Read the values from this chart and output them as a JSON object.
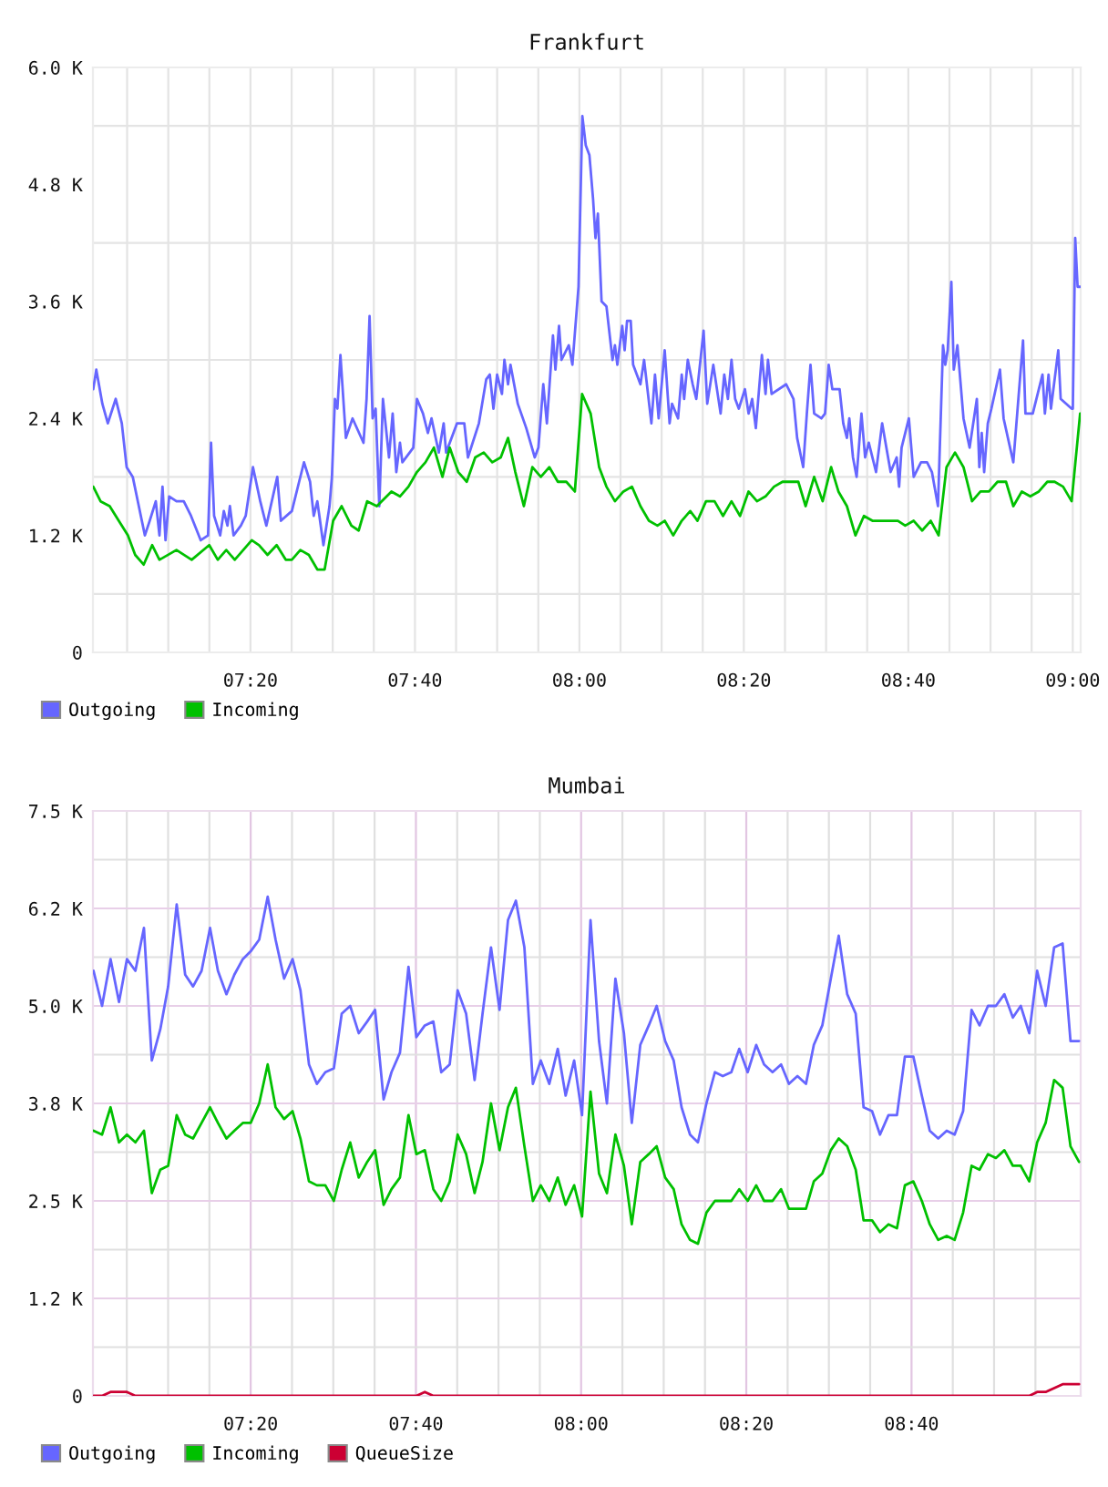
{
  "chart_data": [
    {
      "type": "line",
      "title": "Frankfurt",
      "xlim": [
        7.014,
        9.016
      ],
      "ylim": [
        0,
        6000
      ],
      "grid": true,
      "legend": "bottom left",
      "xticks": [
        {
          "value": 7.0833,
          "label": null
        },
        {
          "value": 7.1667,
          "label": null
        },
        {
          "value": 7.25,
          "label": null
        },
        {
          "value": 7.3333,
          "label": "07:20"
        },
        {
          "value": 7.4167,
          "label": null
        },
        {
          "value": 7.5,
          "label": null
        },
        {
          "value": 7.5833,
          "label": null
        },
        {
          "value": 7.6667,
          "label": "07:40"
        },
        {
          "value": 7.75,
          "label": null
        },
        {
          "value": 7.8333,
          "label": null
        },
        {
          "value": 7.9167,
          "label": null
        },
        {
          "value": 8,
          "label": "08:00"
        },
        {
          "value": 8.0833,
          "label": null
        },
        {
          "value": 8.1667,
          "label": null
        },
        {
          "value": 8.25,
          "label": null
        },
        {
          "value": 8.3333,
          "label": "08:20"
        },
        {
          "value": 8.4167,
          "label": null
        },
        {
          "value": 8.5,
          "label": null
        },
        {
          "value": 8.5833,
          "label": null
        },
        {
          "value": 8.6667,
          "label": "08:40"
        },
        {
          "value": 8.75,
          "label": null
        },
        {
          "value": 8.8333,
          "label": null
        },
        {
          "value": 8.9167,
          "label": null
        },
        {
          "value": 9,
          "label": "09:00"
        }
      ],
      "yticks": [
        0,
        {
          "value": 600,
          "label": null
        },
        {
          "value": 1200,
          "label": "1.2 K"
        },
        {
          "value": 1800,
          "label": null
        },
        {
          "value": 2400,
          "label": "2.4 K"
        },
        {
          "value": 3000,
          "label": null
        },
        {
          "value": 3600,
          "label": "3.6 K"
        },
        {
          "value": 4200,
          "label": null
        },
        {
          "value": 4800,
          "label": "4.8 K"
        },
        {
          "value": 5400,
          "label": null
        },
        {
          "value": 6000,
          "label": "6.0 K"
        }
      ],
      "series": [
        {
          "name": "Outgoing",
          "color": "#6666ff",
          "x": [
            7.0146,
            7.0208,
            7.0331,
            7.0442,
            7.0602,
            7.0725,
            7.0823,
            7.0947,
            7.1131,
            7.1193,
            7.1291,
            7.1414,
            7.1488,
            7.155,
            7.1611,
            7.1685,
            7.1833,
            7.1981,
            7.2128,
            7.2325,
            7.2473,
            7.2534,
            7.2596,
            7.2719,
            7.2793,
            7.2867,
            7.2916,
            7.299,
            7.3138,
            7.3236,
            7.3384,
            7.3531,
            7.3655,
            7.3876,
            7.395,
            7.4172,
            7.4319,
            7.4418,
            7.4541,
            7.4615,
            7.4688,
            7.4812,
            7.4935,
            7.4984,
            7.5045,
            7.5095,
            7.5156,
            7.5267,
            7.5402,
            7.5624,
            7.5686,
            7.5747,
            7.5809,
            7.587,
            7.5944,
            7.6018,
            7.6141,
            7.6215,
            7.6289,
            7.6363,
            7.6412,
            7.6633,
            7.6707,
            7.683,
            7.6929,
            7.7003,
            7.715,
            7.7249,
            7.7298,
            7.752,
            7.7667,
            7.7741,
            7.7963,
            7.8111,
            7.8184,
            7.8258,
            7.8332,
            7.843,
            7.848,
            7.8554,
            7.8603,
            7.8751,
            7.8923,
            7.9095,
            7.9169,
            7.9268,
            7.9341,
            7.9464,
            7.9514,
            7.9587,
            7.9637,
            7.9785,
            7.9858,
            7.9982,
            8.006,
            8.0129,
            8.0203,
            8.0277,
            8.0326,
            8.0375,
            8.0449,
            8.0548,
            8.0671,
            8.072,
            8.0769,
            8.0868,
            8.0917,
            8.0966,
            8.104,
            8.1089,
            8.1237,
            8.1311,
            8.1459,
            8.1532,
            8.1606,
            8.1729,
            8.1828,
            8.1877,
            8.2,
            8.2074,
            8.2123,
            8.2197,
            8.2296,
            8.2369,
            8.2517,
            8.2591,
            8.2714,
            8.2862,
            8.2936,
            8.301,
            8.3083,
            8.3157,
            8.3231,
            8.3355,
            8.3429,
            8.3502,
            8.3576,
            8.3699,
            8.3773,
            8.3822,
            8.3896,
            8.4191,
            8.4339,
            8.4413,
            8.4536,
            8.461,
            8.4684,
            8.4758,
            8.4905,
            8.4979,
            8.5053,
            8.5127,
            8.5274,
            8.5348,
            8.5422,
            8.5471,
            8.5545,
            8.5619,
            8.5717,
            8.5791,
            8.5865,
            8.6013,
            8.6136,
            8.6308,
            8.6431,
            8.648,
            8.653,
            8.6678,
            8.6776,
            8.6924,
            8.7047,
            8.7145,
            8.7268,
            8.737,
            8.7416,
            8.7465,
            8.7539,
            8.7588,
            8.7662,
            8.7785,
            8.7909,
            8.8056,
            8.8106,
            8.8155,
            8.8204,
            8.8278,
            8.8351,
            8.8524,
            8.8598,
            8.8795,
            8.8992,
            8.9041,
            8.9189,
            8.9386,
            8.9435,
            8.9509,
            8.9558,
            8.9706,
            8.9755,
            8.9977,
            9.0001,
            9.005,
            9.0098,
            9.0147
          ],
          "values": [
            2700,
            2900,
            2550,
            2350,
            2600,
            2350,
            1900,
            1800,
            1350,
            1200,
            1350,
            1550,
            1200,
            1700,
            1150,
            1600,
            1550,
            1550,
            1400,
            1150,
            1200,
            2150,
            1400,
            1200,
            1450,
            1300,
            1500,
            1200,
            1300,
            1400,
            1900,
            1550,
            1300,
            1800,
            1350,
            1450,
            1750,
            1950,
            1750,
            1400,
            1550,
            1100,
            1500,
            1800,
            2600,
            2500,
            3050,
            2200,
            2400,
            2150,
            2600,
            3450,
            2400,
            2500,
            1500,
            2600,
            2000,
            2450,
            1850,
            2150,
            1950,
            2100,
            2600,
            2450,
            2250,
            2400,
            2050,
            2350,
            2050,
            2350,
            2350,
            2000,
            2350,
            2800,
            2850,
            2500,
            2850,
            2650,
            3000,
            2750,
            2950,
            2550,
            2300,
            2000,
            2100,
            2750,
            2350,
            3250,
            2900,
            3350,
            3000,
            3150,
            2950,
            3750,
            5500,
            5200,
            5100,
            4650,
            4250,
            4500,
            3600,
            3550,
            3000,
            3150,
            2950,
            3350,
            3100,
            3400,
            3400,
            2950,
            2750,
            3000,
            2350,
            2850,
            2400,
            3100,
            2350,
            2550,
            2400,
            2850,
            2600,
            3000,
            2750,
            2600,
            3300,
            2550,
            2950,
            2450,
            2850,
            2600,
            3000,
            2600,
            2500,
            2700,
            2450,
            2600,
            2300,
            3050,
            2650,
            3000,
            2650,
            2750,
            2600,
            2200,
            1900,
            2450,
            2950,
            2450,
            2400,
            2450,
            2950,
            2700,
            2700,
            2350,
            2200,
            2400,
            2000,
            1800,
            2450,
            2000,
            2150,
            1850,
            2350,
            1850,
            2000,
            1700,
            2100,
            2400,
            1800,
            1950,
            1950,
            1850,
            1500,
            3150,
            2950,
            3100,
            3800,
            2900,
            3150,
            2400,
            2100,
            2600,
            1900,
            2250,
            1850,
            2350,
            2500,
            2900,
            2400,
            1950,
            3200,
            2450,
            2450,
            2850,
            2450,
            2850,
            2500,
            3100,
            2600,
            2500,
            2500,
            4250,
            3750,
            3750
          ]
        },
        {
          "name": "Incoming",
          "color": "#00c000",
          "x": [
            7.0146,
            7.0294,
            7.0479,
            7.0663,
            7.0848,
            7.0996,
            7.1168,
            7.1341,
            7.1488,
            7.1833,
            7.2141,
            7.2497,
            7.267,
            7.2842,
            7.3014,
            7.3187,
            7.3359,
            7.3507,
            7.3679,
            7.3864,
            7.4048,
            7.4171,
            7.4344,
            7.4516,
            7.4688,
            7.4836,
            7.5009,
            7.5181,
            7.5378,
            7.5526,
            7.5698,
            7.5895,
            7.619,
            7.6363,
            7.6535,
            7.6707,
            7.688,
            7.7052,
            7.7224,
            7.7372,
            7.7544,
            7.7717,
            7.7889,
            7.8061,
            7.8234,
            7.8406,
            7.8554,
            7.8701,
            7.8874,
            7.9046,
            7.9218,
            7.9391,
            7.9563,
            7.9735,
            7.9908,
            8.0055,
            8.0228,
            8.04,
            8.0548,
            8.072,
            8.0892,
            8.1065,
            8.1237,
            8.1409,
            8.1582,
            8.1729,
            8.1902,
            8.2074,
            8.2246,
            8.2394,
            8.2566,
            8.2739,
            8.2911,
            8.3083,
            8.3256,
            8.3428,
            8.36,
            8.3773,
            8.3945,
            8.4117,
            8.429,
            8.4437,
            8.4585,
            8.4758,
            8.493,
            8.5102,
            8.525,
            8.5422,
            8.5595,
            8.5767,
            8.5939,
            8.6112,
            8.6456,
            8.6604,
            8.6776,
            8.6948,
            8.7121,
            8.7281,
            8.7441,
            8.7613,
            8.7785,
            8.7958,
            8.813,
            8.8302,
            8.8475,
            8.8647,
            8.8795,
            8.8967,
            8.9139,
            8.9312,
            8.9484,
            8.9632,
            8.9804,
            8.9977,
            9.0149
          ],
          "values": [
            1700,
            1550,
            1500,
            1350,
            1200,
            1000,
            900,
            1100,
            950,
            1050,
            950,
            1100,
            950,
            1050,
            950,
            1050,
            1150,
            1100,
            1000,
            1100,
            950,
            950,
            1050,
            1000,
            850,
            850,
            1350,
            1500,
            1300,
            1250,
            1550,
            1500,
            1650,
            1600,
            1700,
            1850,
            1950,
            2100,
            1800,
            2100,
            1850,
            1750,
            2000,
            2050,
            1950,
            2000,
            2200,
            1850,
            1500,
            1900,
            1800,
            1900,
            1750,
            1750,
            1650,
            2650,
            2450,
            1900,
            1700,
            1550,
            1650,
            1700,
            1500,
            1350,
            1300,
            1350,
            1200,
            1350,
            1450,
            1350,
            1550,
            1550,
            1400,
            1550,
            1400,
            1650,
            1550,
            1600,
            1700,
            1750,
            1750,
            1750,
            1500,
            1800,
            1550,
            1900,
            1650,
            1500,
            1200,
            1400,
            1350,
            1350,
            1350,
            1300,
            1350,
            1250,
            1350,
            1200,
            1900,
            2050,
            1900,
            1550,
            1650,
            1650,
            1750,
            1750,
            1500,
            1650,
            1600,
            1650,
            1750,
            1750,
            1700,
            1550,
            2450
          ]
        }
      ]
    },
    {
      "type": "line",
      "title": "Mumbai",
      "xlim": [
        7.015,
        9.008
      ],
      "ylim": [
        0,
        7500
      ],
      "grid": true,
      "legend": "bottom left",
      "xticks": [
        {
          "value": 7.0833,
          "label": null
        },
        {
          "value": 7.1667,
          "label": null
        },
        {
          "value": 7.25,
          "label": null
        },
        {
          "value": 7.3333,
          "label": "07:20"
        },
        {
          "value": 7.4167,
          "label": null
        },
        {
          "value": 7.5,
          "label": null
        },
        {
          "value": 7.5833,
          "label": null
        },
        {
          "value": 7.6667,
          "label": "07:40"
        },
        {
          "value": 7.75,
          "label": null
        },
        {
          "value": 7.8333,
          "label": null
        },
        {
          "value": 7.9167,
          "label": null
        },
        {
          "value": 8,
          "label": "08:00"
        },
        {
          "value": 8.0833,
          "label": null
        },
        {
          "value": 8.1667,
          "label": null
        },
        {
          "value": 8.25,
          "label": null
        },
        {
          "value": 8.3333,
          "label": "08:20"
        },
        {
          "value": 8.4167,
          "label": null
        },
        {
          "value": 8.5,
          "label": null
        },
        {
          "value": 8.5833,
          "label": null
        },
        {
          "value": 8.6667,
          "label": "08:40"
        },
        {
          "value": 8.75,
          "label": null
        },
        {
          "value": 8.8333,
          "label": null
        },
        {
          "value": 8.9167,
          "label": null
        }
      ],
      "yticks": [
        0,
        {
          "value": 625,
          "label": null
        },
        {
          "value": 1250,
          "label": "1.2 K"
        },
        {
          "value": 1875,
          "label": null
        },
        {
          "value": 2500,
          "label": "2.5 K"
        },
        {
          "value": 3125,
          "label": null
        },
        {
          "value": 3750,
          "label": "3.8 K"
        },
        {
          "value": 4375,
          "label": null
        },
        {
          "value": 5000,
          "label": "5.0 K"
        },
        {
          "value": 5625,
          "label": null
        },
        {
          "value": 6250,
          "label": "6.2 K"
        },
        {
          "value": 6875,
          "label": null
        },
        {
          "value": 7500,
          "label": "7.5 K"
        }
      ],
      "x": [
        7.0162,
        7.0334,
        7.0505,
        7.0676,
        7.0836,
        7.1007,
        7.1179,
        7.1338,
        7.1509,
        7.1668,
        7.184,
        7.2011,
        7.217,
        7.2342,
        7.2513,
        7.2672,
        7.2844,
        7.3003,
        7.3174,
        7.3333,
        7.3505,
        7.3676,
        7.3835,
        7.4007,
        7.4178,
        7.4337,
        7.4509,
        7.4668,
        7.4839,
        7.5011,
        7.517,
        7.5341,
        7.5513,
        7.5684,
        7.5843,
        7.6015,
        7.6174,
        7.6345,
        7.6517,
        7.6676,
        7.6847,
        7.7019,
        7.7178,
        7.7349,
        7.7509,
        7.768,
        7.7851,
        7.8011,
        7.8182,
        7.8354,
        7.8525,
        7.8684,
        7.8856,
        7.9027,
        7.9186,
        7.9358,
        7.9529,
        7.9688,
        7.986,
        8.0019,
        8.019,
        8.0362,
        8.0521,
        8.0692,
        8.0864,
        8.1023,
        8.1194,
        8.1366,
        8.1525,
        8.1696,
        8.1868,
        8.2027,
        8.2198,
        8.2357,
        8.2529,
        8.27,
        8.2859,
        8.3031,
        8.319,
        8.3361,
        8.3533,
        8.3692,
        8.3863,
        8.4035,
        8.4194,
        8.4365,
        8.4537,
        8.4696,
        8.4867,
        8.5039,
        8.5198,
        8.5369,
        8.5541,
        8.57,
        8.5871,
        8.6031,
        8.6202,
        8.6373,
        8.6533,
        8.6704,
        8.6875,
        8.7035,
        8.7206,
        8.7377,
        8.7537,
        8.7708,
        8.7879,
        8.8039,
        8.821,
        8.8369,
        8.8541,
        8.8712,
        8.8871,
        8.9043,
        8.9202,
        8.9373,
        8.9545,
        8.9716,
        8.9875,
        9.0047
      ],
      "series": [
        {
          "name": "Outgoing",
          "color": "#6666ff",
          "values": [
            5450,
            5000,
            5600,
            5050,
            5600,
            5450,
            6000,
            4300,
            4700,
            5250,
            6300,
            5400,
            5250,
            5450,
            6000,
            5450,
            5150,
            5400,
            5600,
            5700,
            5850,
            6400,
            5850,
            5350,
            5600,
            5200,
            4250,
            4000,
            4150,
            4200,
            4900,
            5000,
            4650,
            4800,
            4950,
            3800,
            4150,
            4400,
            5500,
            4600,
            4750,
            4800,
            4150,
            4250,
            5200,
            4900,
            4050,
            4900,
            5750,
            4950,
            6100,
            6350,
            5750,
            4000,
            4300,
            4000,
            4450,
            3850,
            4300,
            3600,
            6100,
            4550,
            3750,
            5350,
            4650,
            3500,
            4500,
            4750,
            5000,
            4550,
            4300,
            3700,
            3350,
            3250,
            3750,
            4150,
            4100,
            4150,
            4450,
            4150,
            4500,
            4250,
            4150,
            4250,
            4000,
            4100,
            4000,
            4500,
            4750,
            5350,
            5900,
            5150,
            4900,
            3700,
            3650,
            3350,
            3600,
            3600,
            4350,
            4350,
            3850,
            3400,
            3300,
            3400,
            3350,
            3650,
            4950,
            4750,
            5000,
            5000,
            5150,
            4850,
            5000,
            4650,
            5450,
            5000,
            5750,
            5800,
            4550,
            4550
          ]
        },
        {
          "name": "Incoming",
          "color": "#00c000",
          "values": [
            3400,
            3350,
            3700,
            3250,
            3350,
            3250,
            3400,
            2600,
            2900,
            2950,
            3600,
            3350,
            3300,
            3500,
            3700,
            3500,
            3300,
            3400,
            3500,
            3500,
            3750,
            4250,
            3700,
            3550,
            3650,
            3300,
            2750,
            2700,
            2700,
            2500,
            2900,
            3250,
            2800,
            3000,
            3150,
            2450,
            2650,
            2800,
            3600,
            3100,
            3150,
            2650,
            2500,
            2750,
            3350,
            3100,
            2600,
            3000,
            3750,
            3150,
            3700,
            3950,
            3200,
            2500,
            2700,
            2500,
            2800,
            2450,
            2700,
            2300,
            3900,
            2850,
            2600,
            3350,
            2950,
            2200,
            3000,
            3100,
            3200,
            2800,
            2650,
            2200,
            2000,
            1950,
            2350,
            2500,
            2500,
            2500,
            2650,
            2500,
            2700,
            2500,
            2500,
            2650,
            2400,
            2400,
            2400,
            2750,
            2850,
            3150,
            3300,
            3200,
            2900,
            2250,
            2250,
            2100,
            2200,
            2150,
            2700,
            2750,
            2500,
            2200,
            2000,
            2050,
            2000,
            2350,
            2950,
            2900,
            3100,
            3050,
            3150,
            2950,
            2950,
            2750,
            3250,
            3500,
            4050,
            3950,
            3200,
            3000
          ]
        },
        {
          "name": "QueueSize",
          "color": "#cc0033",
          "values": [
            0,
            0,
            50,
            50,
            50,
            0,
            0,
            0,
            0,
            0,
            0,
            0,
            0,
            0,
            0,
            0,
            0,
            0,
            0,
            0,
            0,
            0,
            0,
            0,
            0,
            0,
            0,
            0,
            0,
            0,
            0,
            0,
            0,
            0,
            0,
            0,
            0,
            0,
            0,
            0,
            50,
            0,
            0,
            0,
            0,
            0,
            0,
            0,
            0,
            0,
            0,
            0,
            0,
            0,
            0,
            0,
            0,
            0,
            0,
            0,
            0,
            0,
            0,
            0,
            0,
            0,
            0,
            0,
            0,
            0,
            0,
            0,
            0,
            0,
            0,
            0,
            0,
            0,
            0,
            0,
            0,
            0,
            0,
            0,
            0,
            0,
            0,
            0,
            0,
            0,
            0,
            0,
            0,
            0,
            0,
            0,
            0,
            0,
            0,
            0,
            0,
            0,
            0,
            0,
            0,
            0,
            0,
            0,
            0,
            0,
            0,
            0,
            0,
            0,
            50,
            50,
            100,
            150,
            150,
            150
          ]
        }
      ]
    }
  ]
}
